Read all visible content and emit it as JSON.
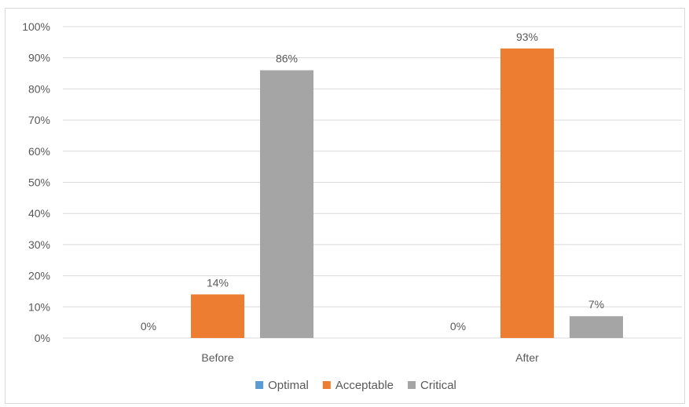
{
  "chart_data": {
    "type": "bar",
    "categories": [
      "Before",
      "After"
    ],
    "series": [
      {
        "name": "Optimal",
        "values": [
          0,
          0
        ],
        "color": "#5b9bd5"
      },
      {
        "name": "Acceptable",
        "values": [
          14,
          93
        ],
        "color": "#ed7d31"
      },
      {
        "name": "Critical",
        "values": [
          86,
          7
        ],
        "color": "#a5a5a5"
      }
    ],
    "data_labels": [
      [
        "0%",
        "0%"
      ],
      [
        "14%",
        "93%"
      ],
      [
        "86%",
        "7%"
      ]
    ],
    "y_ticks": [
      "0%",
      "10%",
      "20%",
      "30%",
      "40%",
      "50%",
      "60%",
      "70%",
      "80%",
      "90%",
      "100%"
    ],
    "ylim": [
      0,
      100
    ],
    "grid": true,
    "legend_position": "bottom",
    "gridline_color": "#d9d9d9",
    "axis_text_color": "#595959"
  }
}
